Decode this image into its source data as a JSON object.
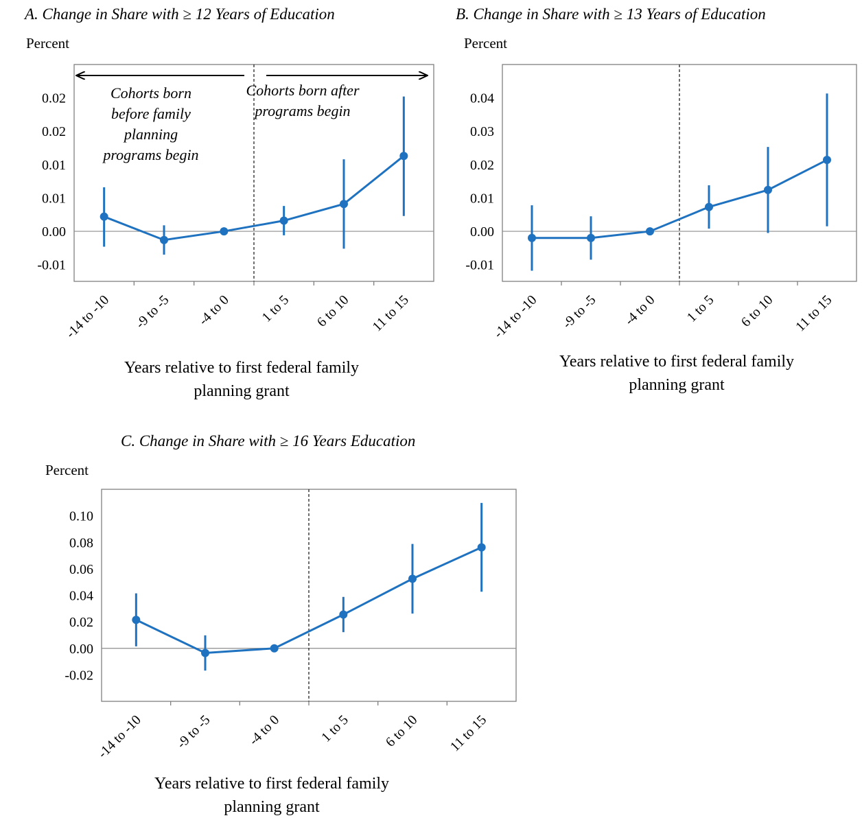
{
  "chart_data": [
    {
      "type": "line",
      "title": "A. Change in Share with ≥ 12 Years of Education",
      "ylabel": "Percent",
      "xlabel": "Years relative to first federal family planning grant",
      "categories": [
        "-14 to -10",
        "-9 to -5",
        "-4 to 0",
        "1 to 5",
        "6 to 10",
        "11 to 15"
      ],
      "yticks": [
        -0.005,
        0,
        0.005,
        0.01,
        0.015,
        0.02
      ],
      "ytick_labels": [
        "-0.01",
        "0.00",
        "0.01",
        "0.01",
        "0.02",
        "0.02"
      ],
      "ylim": [
        -0.01,
        0.025
      ],
      "series": [
        {
          "values": [
            0.0022,
            -0.0013,
            0.0,
            0.0016,
            0.0041,
            0.0113
          ],
          "ci_low": [
            -0.0023,
            -0.0035,
            0.0,
            -0.0006,
            -0.0026,
            0.0023
          ],
          "ci_high": [
            0.0066,
            0.0009,
            0.0,
            0.0038,
            0.0108,
            0.0202
          ]
        }
      ],
      "annotations": [
        "Cohorts born before family planning programs begin",
        "Cohorts born after programs begin"
      ],
      "vline_category": "-4 to 0",
      "color": "#1f72bf",
      "grid": false
    },
    {
      "type": "line",
      "title": "B. Change in Share with ≥ 13 Years of Education",
      "ylabel": "Percent",
      "xlabel": "Years relative to first federal family planning grant",
      "categories": [
        "-14 to -10",
        "-9 to -5",
        "-4 to 0",
        "1 to 5",
        "6 to 10",
        "11 to 15"
      ],
      "yticks": [
        -0.01,
        0,
        0.01,
        0.02,
        0.03,
        0.04
      ],
      "ytick_labels": [
        "-0.01",
        "0.00",
        "0.01",
        "0.02",
        "0.03",
        "0.04"
      ],
      "ylim": [
        -0.02,
        0.05
      ],
      "series": [
        {
          "values": [
            -0.002,
            -0.002,
            0.0,
            0.0073,
            0.0124,
            0.0214
          ],
          "ci_low": [
            -0.0118,
            -0.0085,
            0.0,
            0.0008,
            -0.0005,
            0.0015
          ],
          "ci_high": [
            0.0078,
            0.0045,
            0.0,
            0.0138,
            0.0253,
            0.0413
          ]
        }
      ],
      "vline_category": "-4 to 0",
      "color": "#1f72bf",
      "grid": false
    },
    {
      "type": "line",
      "title": "C. Change in Share with ≥ 16 Years Education",
      "ylabel": "Percent",
      "xlabel": "Years relative to first federal family planning grant",
      "categories": [
        "-14 to -10",
        "-9 to -5",
        "-4 to 0",
        "1 to 5",
        "6 to 10",
        "11 to 15"
      ],
      "yticks": [
        -0.02,
        0,
        0.02,
        0.04,
        0.06,
        0.08,
        0.1
      ],
      "ytick_labels": [
        "-0.02",
        "0.00",
        "0.02",
        "0.04",
        "0.06",
        "0.08",
        "0.10"
      ],
      "ylim": [
        -0.04,
        0.12
      ],
      "series": [
        {
          "values": [
            0.0215,
            -0.0035,
            0.0,
            0.0255,
            0.0525,
            0.0762
          ],
          "ci_low": [
            0.0015,
            -0.0168,
            0.0,
            0.0122,
            0.0262,
            0.0427
          ],
          "ci_high": [
            0.0415,
            0.0098,
            0.0,
            0.0388,
            0.0788,
            0.1097
          ]
        }
      ],
      "vline_category": "-4 to 0",
      "color": "#1f72bf",
      "grid": false
    }
  ]
}
